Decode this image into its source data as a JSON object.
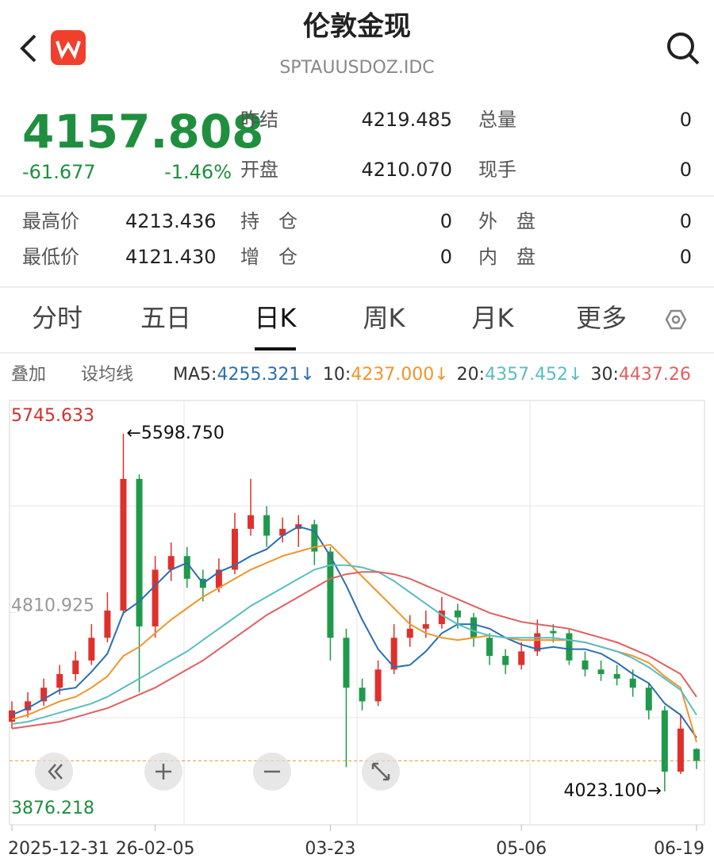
{
  "header": {
    "title": "伦敦金现",
    "code": "SPTAUUSDOZ.IDC"
  },
  "quote": {
    "price": "4157.808",
    "change": "-61.677",
    "change_pct": "-1.46%"
  },
  "stats_top": [
    {
      "label": "昨结",
      "value": "4219.485"
    },
    {
      "label": "总量",
      "value": "0"
    },
    {
      "label": "开盘",
      "value": "4210.070"
    },
    {
      "label": "现手",
      "value": "0"
    }
  ],
  "stats_bottom": [
    {
      "label": "最高价",
      "value": "4213.436"
    },
    {
      "label": "持　仓",
      "value": "0"
    },
    {
      "label": "外　盘",
      "value": "0"
    },
    {
      "label": "最低价",
      "value": "4121.430"
    },
    {
      "label": "增　仓",
      "value": "0"
    },
    {
      "label": "内　盘",
      "value": "0"
    }
  ],
  "tabs": [
    "分时",
    "五日",
    "日K",
    "周K",
    "月K",
    "更多"
  ],
  "active_tab": 2,
  "toolbar": [
    "叠加",
    "设均线"
  ],
  "ma_legend": [
    {
      "name": "MA5:",
      "value": "4255.321↓",
      "color": "#2a6fb0"
    },
    {
      "name": "10:",
      "value": "4237.000↓",
      "color": "#f0952a"
    },
    {
      "name": "20:",
      "value": "4357.452↓",
      "color": "#5bbcc4"
    },
    {
      "name": "30:",
      "value": "4437.26",
      "color": "#e06060"
    }
  ],
  "chart_data": {
    "type": "candlestick",
    "categories": [
      "2025-12-31",
      null,
      null,
      null,
      null,
      null,
      null,
      null,
      null,
      "26-02-05",
      null,
      null,
      null,
      null,
      null,
      null,
      null,
      null,
      null,
      null,
      "03-23",
      null,
      null,
      null,
      null,
      null,
      null,
      null,
      null,
      null,
      null,
      null,
      "05-06",
      null,
      null,
      null,
      null,
      null,
      null,
      null,
      null,
      null,
      null,
      "06-19"
    ],
    "open": [
      4330,
      4380,
      4420,
      4480,
      4540,
      4600,
      4700,
      4820,
      5400,
      4750,
      5000,
      5060,
      4960,
      4920,
      5000,
      5180,
      5240,
      5150,
      5180,
      5200,
      5080,
      4700,
      4480,
      4420,
      4560,
      4700,
      4740,
      4760,
      4820,
      4790,
      4700,
      4620,
      4580,
      4640,
      4730,
      4720,
      4600,
      4560,
      4540,
      4520,
      4480,
      4380,
      4110,
      4210.07
    ],
    "high": [
      4420,
      4460,
      4520,
      4580,
      4640,
      4760,
      4900,
      5598.75,
      5420,
      5060,
      5120,
      5100,
      5000,
      5050,
      5250,
      5400,
      5280,
      5230,
      5240,
      5220,
      5100,
      4740,
      4520,
      4600,
      4760,
      4800,
      4820,
      4880,
      4850,
      4810,
      4720,
      4650,
      4680,
      4780,
      4760,
      4740,
      4640,
      4600,
      4580,
      4560,
      4500,
      4400,
      4360,
      4213.436
    ],
    "low": [
      4300,
      4350,
      4400,
      4450,
      4510,
      4580,
      4680,
      4800,
      4460,
      4700,
      4950,
      4920,
      4860,
      4900,
      4980,
      5150,
      5100,
      5120,
      5100,
      5020,
      4600,
      4130,
      4380,
      4400,
      4540,
      4660,
      4700,
      4740,
      4740,
      4660,
      4580,
      4540,
      4560,
      4620,
      4680,
      4580,
      4530,
      4510,
      4490,
      4440,
      4340,
      4023.1,
      4100,
      4121.43
    ],
    "close": [
      4380,
      4420,
      4480,
      4540,
      4600,
      4700,
      4820,
      5400,
      4750,
      5000,
      5060,
      4960,
      4920,
      5000,
      5180,
      5240,
      5150,
      5180,
      5200,
      5080,
      4700,
      4480,
      4420,
      4560,
      4700,
      4740,
      4760,
      4820,
      4790,
      4700,
      4620,
      4580,
      4640,
      4720,
      4720,
      4600,
      4560,
      4540,
      4520,
      4480,
      4380,
      4110,
      4300,
      4157.808
    ],
    "up_color": "#e0302c",
    "down_color": "#1f9a4a",
    "series": [
      {
        "color": "#2a6fb0",
        "values": [
          4360,
          4390,
          4430,
          4470,
          4480,
          4550,
          4630,
          4810,
          4860,
          4930,
          5000,
          5030,
          4940,
          4990,
          5020,
          5060,
          5090,
          5150,
          5190,
          5170,
          5060,
          4930,
          4780,
          4650,
          4570,
          4580,
          4640,
          4720,
          4760,
          4760,
          4740,
          4700,
          4670,
          4650,
          4660,
          4650,
          4650,
          4630,
          4590,
          4540,
          4500,
          4410,
          4360,
          4260
        ]
      },
      {
        "color": "#f0952a",
        "values": [
          4340,
          4360,
          4390,
          4420,
          4440,
          4480,
          4530,
          4620,
          4660,
          4720,
          4780,
          4830,
          4880,
          4920,
          4960,
          5000,
          5030,
          5060,
          5080,
          5100,
          5110,
          5040,
          4970,
          4900,
          4830,
          4760,
          4720,
          4700,
          4690,
          4700,
          4710,
          4700,
          4690,
          4690,
          4690,
          4690,
          4680,
          4660,
          4640,
          4620,
          4590,
          4530,
          4480,
          4240
        ]
      },
      {
        "color": "#5bbcc4",
        "values": [
          4320,
          4330,
          4350,
          4370,
          4390,
          4410,
          4440,
          4480,
          4520,
          4560,
          4600,
          4640,
          4690,
          4740,
          4790,
          4840,
          4880,
          4920,
          4960,
          5000,
          5020,
          5020,
          5010,
          4990,
          4950,
          4900,
          4850,
          4800,
          4760,
          4730,
          4710,
          4700,
          4700,
          4700,
          4700,
          4690,
          4680,
          4660,
          4640,
          4610,
          4570,
          4520,
          4470,
          4360
        ]
      },
      {
        "color": "#e06060",
        "values": [
          4300,
          4310,
          4320,
          4330,
          4350,
          4370,
          4390,
          4420,
          4450,
          4480,
          4520,
          4560,
          4600,
          4650,
          4700,
          4750,
          4800,
          4840,
          4880,
          4920,
          4960,
          4980,
          4990,
          4990,
          4980,
          4960,
          4930,
          4900,
          4870,
          4840,
          4810,
          4790,
          4770,
          4760,
          4750,
          4740,
          4720,
          4700,
          4680,
          4650,
          4620,
          4580,
          4540,
          4440
        ]
      }
    ],
    "ylim": [
      3876.218,
      5745.633
    ],
    "yticks": [
      3876.218,
      4810.925,
      5745.633
    ],
    "last_price": 4157.808,
    "annotations": [
      {
        "text": "←5598.750",
        "index": 7,
        "value": 5598.75
      },
      {
        "text": "4023.100→",
        "index": 41,
        "value": 4023.1
      }
    ]
  }
}
